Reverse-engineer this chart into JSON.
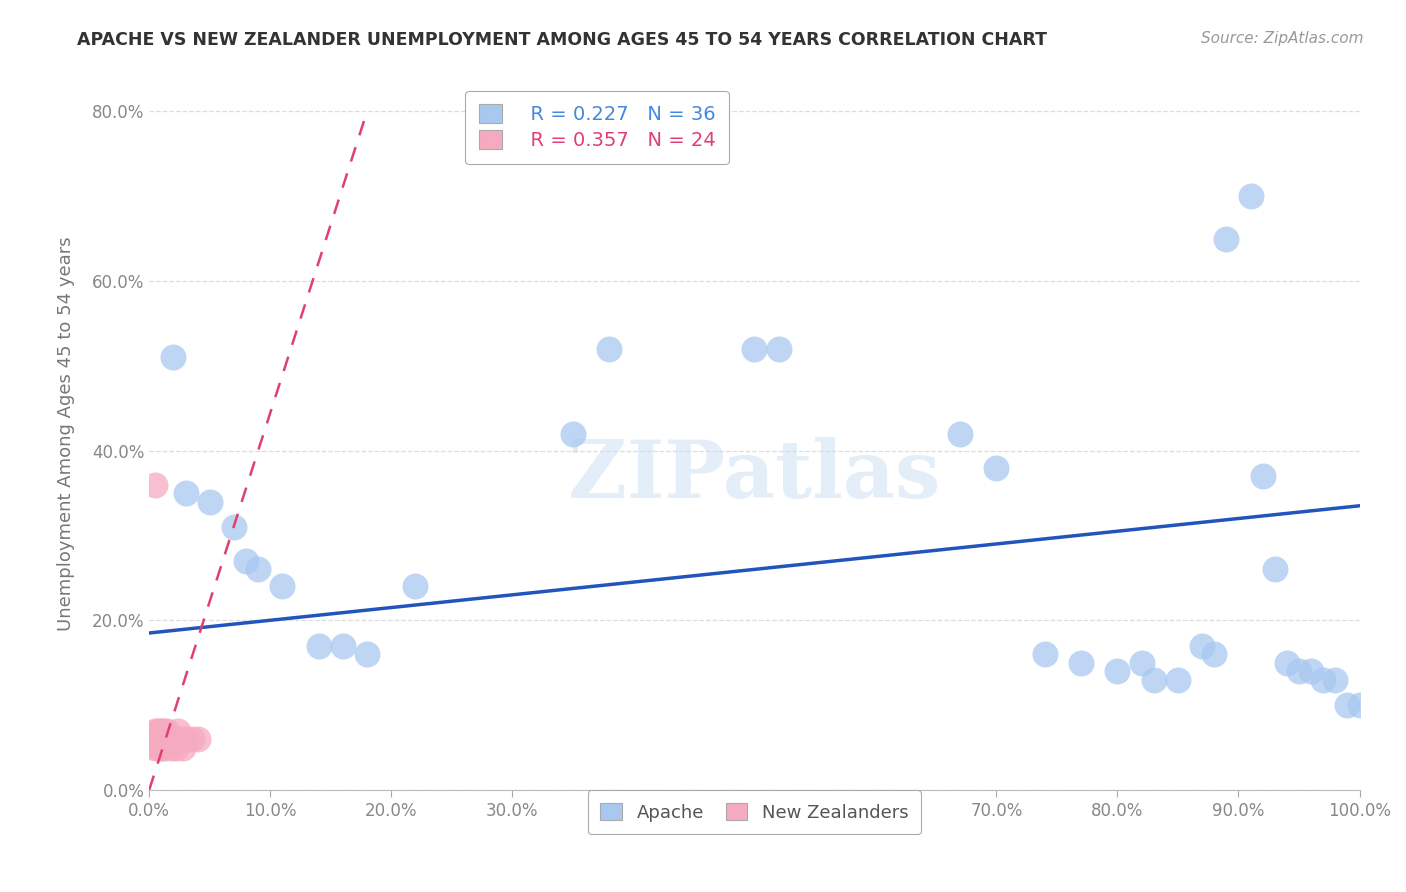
{
  "title": "APACHE VS NEW ZEALANDER UNEMPLOYMENT AMONG AGES 45 TO 54 YEARS CORRELATION CHART",
  "source": "Source: ZipAtlas.com",
  "ylabel_label": "Unemployment Among Ages 45 to 54 years",
  "watermark_text": "ZIPatlas",
  "apache_color": "#a8c8f0",
  "apache_edge_color": "#7aaee0",
  "apache_line_color": "#2255bb",
  "nz_color": "#f5aac0",
  "nz_edge_color": "#e080a0",
  "nz_line_color": "#e04070",
  "legend_apache_label": "R = 0.227   N = 36",
  "legend_nz_label": "R = 0.357   N = 24",
  "legend_apache_color": "#4488dd",
  "legend_nz_color": "#e04070",
  "apache_points_x": [
    0.02,
    0.03,
    0.05,
    0.07,
    0.08,
    0.09,
    0.11,
    0.14,
    0.16,
    0.18,
    0.22,
    0.35,
    0.38,
    0.5,
    0.52,
    0.67,
    0.7,
    0.74,
    0.77,
    0.8,
    0.82,
    0.83,
    0.85,
    0.87,
    0.88,
    0.89,
    0.91,
    0.92,
    0.93,
    0.94,
    0.95,
    0.96,
    0.97,
    0.98,
    0.99,
    1.0
  ],
  "apache_points_y": [
    0.51,
    0.35,
    0.34,
    0.31,
    0.27,
    0.26,
    0.24,
    0.17,
    0.17,
    0.16,
    0.24,
    0.42,
    0.52,
    0.52,
    0.52,
    0.42,
    0.38,
    0.16,
    0.15,
    0.14,
    0.15,
    0.13,
    0.13,
    0.17,
    0.16,
    0.65,
    0.7,
    0.37,
    0.26,
    0.15,
    0.14,
    0.14,
    0.13,
    0.13,
    0.1,
    0.1
  ],
  "nz_points_x": [
    0.005,
    0.005,
    0.005,
    0.007,
    0.007,
    0.009,
    0.009,
    0.01,
    0.01,
    0.012,
    0.012,
    0.013,
    0.015,
    0.016,
    0.018,
    0.019,
    0.02,
    0.022,
    0.024,
    0.026,
    0.028,
    0.03,
    0.035,
    0.04
  ],
  "nz_points_y": [
    0.36,
    0.07,
    0.05,
    0.07,
    0.05,
    0.07,
    0.05,
    0.07,
    0.05,
    0.07,
    0.06,
    0.05,
    0.07,
    0.06,
    0.06,
    0.05,
    0.06,
    0.05,
    0.07,
    0.06,
    0.05,
    0.06,
    0.06,
    0.06
  ],
  "apache_trend_x0": 0.0,
  "apache_trend_y0": 0.185,
  "apache_trend_x1": 1.0,
  "apache_trend_y1": 0.335,
  "nz_trend_x0": 0.0,
  "nz_trend_y0": 0.0,
  "nz_trend_x1": 0.18,
  "nz_trend_y1": 0.8,
  "xlim": [
    0.0,
    1.0
  ],
  "ylim": [
    0.0,
    0.84
  ],
  "x_ticks": [
    0.0,
    0.1,
    0.2,
    0.3,
    0.4,
    0.5,
    0.6,
    0.7,
    0.8,
    0.9,
    1.0
  ],
  "y_ticks": [
    0.0,
    0.2,
    0.4,
    0.6,
    0.8
  ],
  "background_color": "#ffffff",
  "grid_color": "#dddddd",
  "tick_color": "#888888",
  "title_color": "#333333",
  "source_color": "#999999",
  "ylabel_color": "#777777"
}
